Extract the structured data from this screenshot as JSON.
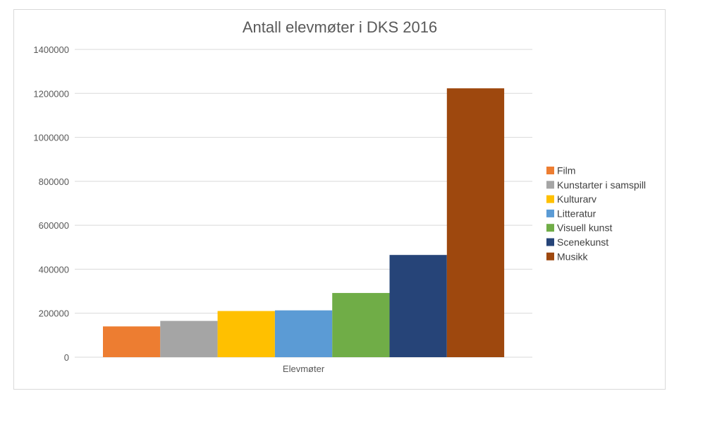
{
  "chart_data": {
    "type": "bar",
    "title": "Antall elevmøter i DKS 2016",
    "categories": [
      "Elevmøter"
    ],
    "series": [
      {
        "name": "Film",
        "values": [
          140000
        ],
        "color": "#ED7D31"
      },
      {
        "name": "Kunstarter i samspill",
        "values": [
          165000
        ],
        "color": "#A5A5A5"
      },
      {
        "name": "Kulturarv",
        "values": [
          210000
        ],
        "color": "#FFC000"
      },
      {
        "name": "Litteratur",
        "values": [
          213000
        ],
        "color": "#5B9BD5"
      },
      {
        "name": "Visuell kunst",
        "values": [
          292000
        ],
        "color": "#70AD47"
      },
      {
        "name": "Scenekunst",
        "values": [
          465000
        ],
        "color": "#264478"
      },
      {
        "name": "Musikk",
        "values": [
          1223000
        ],
        "color": "#9E480E"
      }
    ],
    "yticks": [
      "0",
      "200000",
      "400000",
      "600000",
      "800000",
      "1000000",
      "1200000",
      "1400000"
    ],
    "ylim": [
      0,
      1400000
    ],
    "xlabel": "",
    "ylabel": "",
    "grid": true,
    "legend_position": "right"
  }
}
